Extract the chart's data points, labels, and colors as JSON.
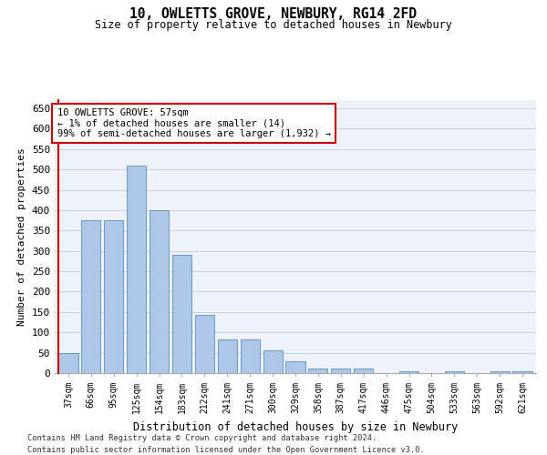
{
  "title": "10, OWLETTS GROVE, NEWBURY, RG14 2FD",
  "subtitle": "Size of property relative to detached houses in Newbury",
  "xlabel": "Distribution of detached houses by size in Newbury",
  "ylabel": "Number of detached properties",
  "bar_color": "#aec6e8",
  "bar_edge_color": "#5a8fc0",
  "background_color": "#eef2f9",
  "grid_color": "#c8d0e0",
  "categories": [
    "37sqm",
    "66sqm",
    "95sqm",
    "125sqm",
    "154sqm",
    "183sqm",
    "212sqm",
    "241sqm",
    "271sqm",
    "300sqm",
    "329sqm",
    "358sqm",
    "387sqm",
    "417sqm",
    "446sqm",
    "475sqm",
    "504sqm",
    "533sqm",
    "563sqm",
    "592sqm",
    "621sqm"
  ],
  "values": [
    50,
    375,
    375,
    510,
    400,
    290,
    143,
    82,
    82,
    55,
    30,
    12,
    12,
    12,
    0,
    5,
    0,
    5,
    0,
    5,
    5
  ],
  "ylim": [
    0,
    670
  ],
  "yticks": [
    0,
    50,
    100,
    150,
    200,
    250,
    300,
    350,
    400,
    450,
    500,
    550,
    600,
    650
  ],
  "annotation_text": "10 OWLETTS GROVE: 57sqm\n← 1% of detached houses are smaller (14)\n99% of semi-detached houses are larger (1,932) →",
  "annotation_box_color": "#ffffff",
  "annotation_box_edge": "#cc0000",
  "footnote1": "Contains HM Land Registry data © Crown copyright and database right 2024.",
  "footnote2": "Contains public sector information licensed under the Open Government Licence v3.0."
}
